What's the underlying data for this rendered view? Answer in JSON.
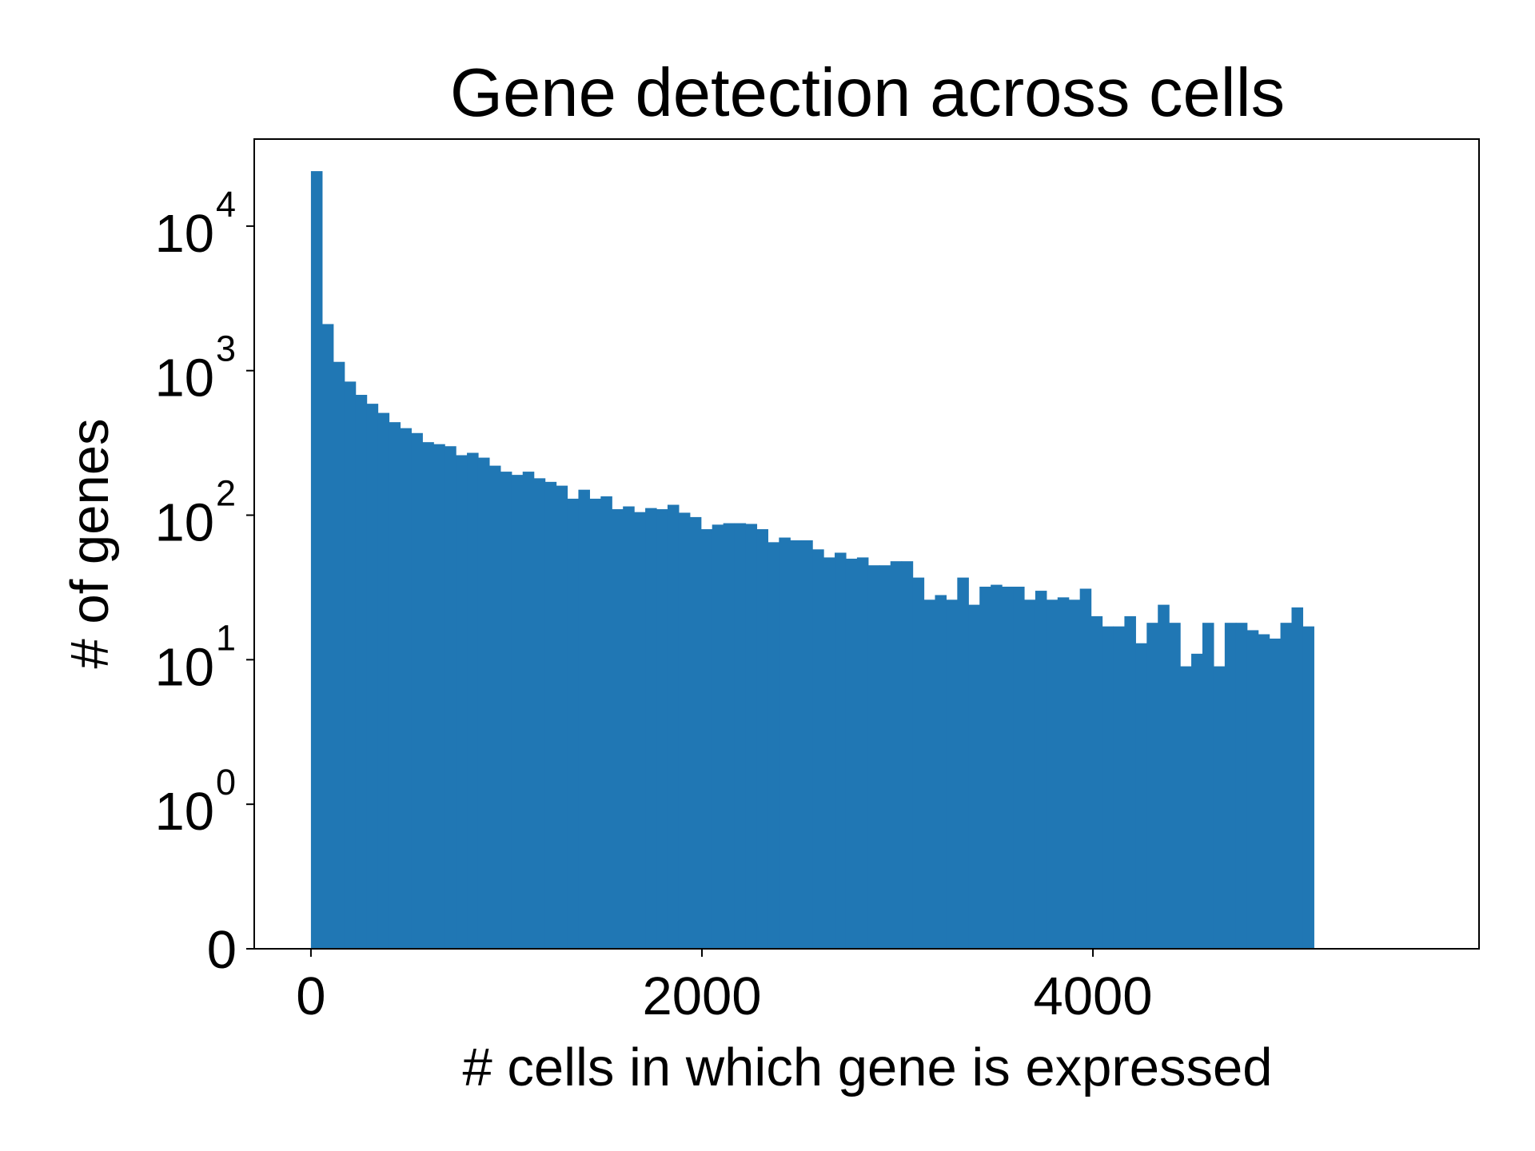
{
  "chart_data": {
    "type": "bar",
    "title": "Gene detection across cells",
    "xlabel": "# cells in which gene is expressed",
    "ylabel": "# of genes",
    "yscale": "symlog",
    "xlim": [
      -290,
      5975
    ],
    "ylim": [
      0,
      40000
    ],
    "grid": false,
    "legend": "none",
    "bar_color": "#2077b4",
    "x_ticks": [
      {
        "value": 0,
        "label": "0"
      },
      {
        "value": 2000,
        "label": "2000"
      },
      {
        "value": 4000,
        "label": "4000"
      }
    ],
    "y_ticks": [
      {
        "value": 0,
        "base": "0",
        "exp": ""
      },
      {
        "value": 1,
        "base": "10",
        "exp": "0"
      },
      {
        "value": 10,
        "base": "10",
        "exp": "1"
      },
      {
        "value": 100,
        "base": "10",
        "exp": "2"
      },
      {
        "value": 1000,
        "base": "10",
        "exp": "3"
      },
      {
        "value": 10000,
        "base": "10",
        "exp": "4"
      }
    ],
    "bin_start": 0,
    "bin_width": 57,
    "values": [
      24000,
      2100,
      1150,
      840,
      680,
      590,
      510,
      440,
      400,
      370,
      320,
      310,
      300,
      260,
      270,
      250,
      220,
      200,
      190,
      200,
      180,
      170,
      160,
      130,
      150,
      130,
      135,
      110,
      115,
      105,
      112,
      110,
      118,
      104,
      97,
      80,
      86,
      88,
      88,
      87,
      80,
      65,
      70,
      67,
      67,
      58,
      51,
      55,
      50,
      51,
      45,
      45,
      48,
      48,
      37,
      26,
      28,
      26,
      37,
      24,
      32,
      33,
      32,
      32,
      26,
      30,
      26,
      27,
      26,
      31,
      20,
      17,
      17,
      20,
      13,
      18,
      24,
      18,
      9,
      11,
      18,
      9,
      18,
      18,
      16,
      15,
      14,
      18,
      23,
      17
    ]
  }
}
